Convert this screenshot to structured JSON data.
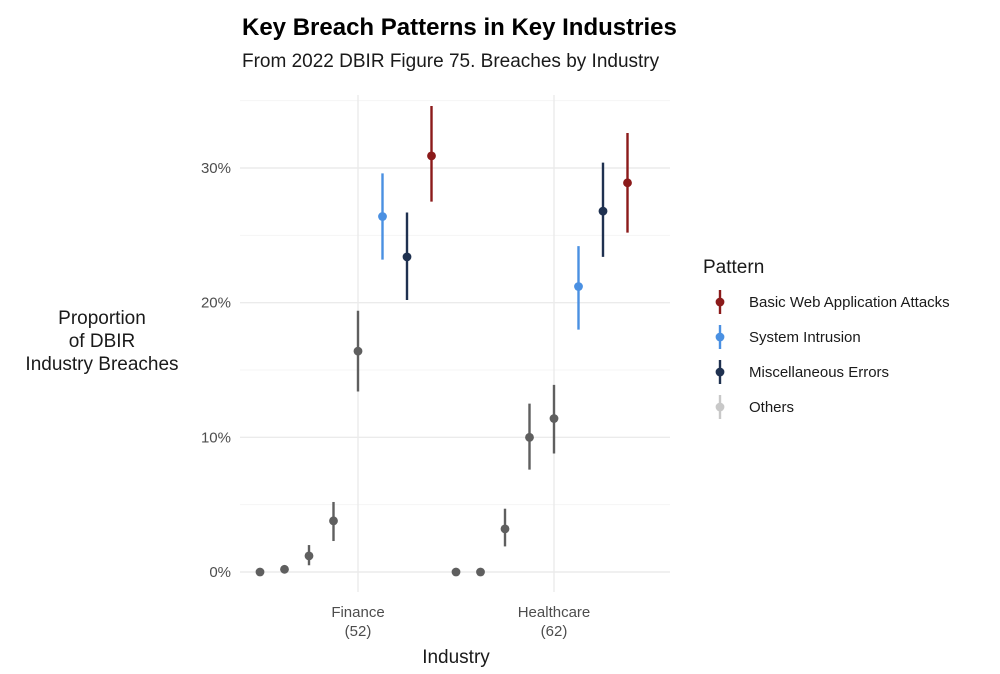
{
  "chart_data": {
    "type": "scatter",
    "title": "Key Breach Patterns in Key Industries",
    "subtitle": "From 2022 DBIR Figure 75. Breaches by Industry",
    "xlabel": "Industry",
    "ylabel": [
      "Proportion",
      "of DBIR",
      "Industry Breaches"
    ],
    "ylim": [
      0,
      0.35
    ],
    "y_ticks": [
      {
        "value": 0,
        "label": "0%"
      },
      {
        "value": 0.1,
        "label": "10%"
      },
      {
        "value": 0.2,
        "label": "20%"
      },
      {
        "value": 0.3,
        "label": "30%"
      }
    ],
    "categories": [
      {
        "name": "Finance",
        "count": "(52)"
      },
      {
        "name": "Healthcare",
        "count": "(62)"
      }
    ],
    "legend": {
      "title": "Pattern",
      "placement": "right",
      "items": [
        {
          "label": "Basic Web Application Attacks",
          "color": "#8B1A1A"
        },
        {
          "label": "System Intrusion",
          "color": "#4A90E2"
        },
        {
          "label": "Miscellaneous Errors",
          "color": "#1F3150"
        },
        {
          "label": "Others",
          "color": "#c8c8c8"
        }
      ]
    },
    "point_color_others": "#5f5f5f",
    "points": [
      {
        "category": "Finance",
        "offset": -4,
        "pattern": "Others",
        "value": 0.0,
        "low": null,
        "high": null
      },
      {
        "category": "Finance",
        "offset": -3,
        "pattern": "Others",
        "value": 0.002,
        "low": null,
        "high": null
      },
      {
        "category": "Finance",
        "offset": -2,
        "pattern": "Others",
        "value": 0.012,
        "low": 0.005,
        "high": 0.02
      },
      {
        "category": "Finance",
        "offset": -1,
        "pattern": "Others",
        "value": 0.038,
        "low": 0.023,
        "high": 0.052
      },
      {
        "category": "Finance",
        "offset": 0,
        "pattern": "Others",
        "value": 0.164,
        "low": 0.134,
        "high": 0.194
      },
      {
        "category": "Finance",
        "offset": 1,
        "pattern": "System Intrusion",
        "value": 0.264,
        "low": 0.232,
        "high": 0.296
      },
      {
        "category": "Finance",
        "offset": 2,
        "pattern": "Miscellaneous Errors",
        "value": 0.234,
        "low": 0.202,
        "high": 0.267
      },
      {
        "category": "Finance",
        "offset": 3,
        "pattern": "Basic Web Application Attacks",
        "value": 0.309,
        "low": 0.275,
        "high": 0.346
      },
      {
        "category": "Healthcare",
        "offset": -4,
        "pattern": "Others",
        "value": 0.0,
        "low": null,
        "high": null
      },
      {
        "category": "Healthcare",
        "offset": -3,
        "pattern": "Others",
        "value": 0.0,
        "low": null,
        "high": null
      },
      {
        "category": "Healthcare",
        "offset": -2,
        "pattern": "Others",
        "value": 0.032,
        "low": 0.019,
        "high": 0.047
      },
      {
        "category": "Healthcare",
        "offset": -1,
        "pattern": "Others",
        "value": 0.1,
        "low": 0.076,
        "high": 0.125
      },
      {
        "category": "Healthcare",
        "offset": 0,
        "pattern": "Others",
        "value": 0.114,
        "low": 0.088,
        "high": 0.139
      },
      {
        "category": "Healthcare",
        "offset": 1,
        "pattern": "System Intrusion",
        "value": 0.212,
        "low": 0.18,
        "high": 0.242
      },
      {
        "category": "Healthcare",
        "offset": 2,
        "pattern": "Miscellaneous Errors",
        "value": 0.268,
        "low": 0.234,
        "high": 0.304
      },
      {
        "category": "Healthcare",
        "offset": 3,
        "pattern": "Basic Web Application Attacks",
        "value": 0.289,
        "low": 0.252,
        "high": 0.326
      }
    ]
  }
}
